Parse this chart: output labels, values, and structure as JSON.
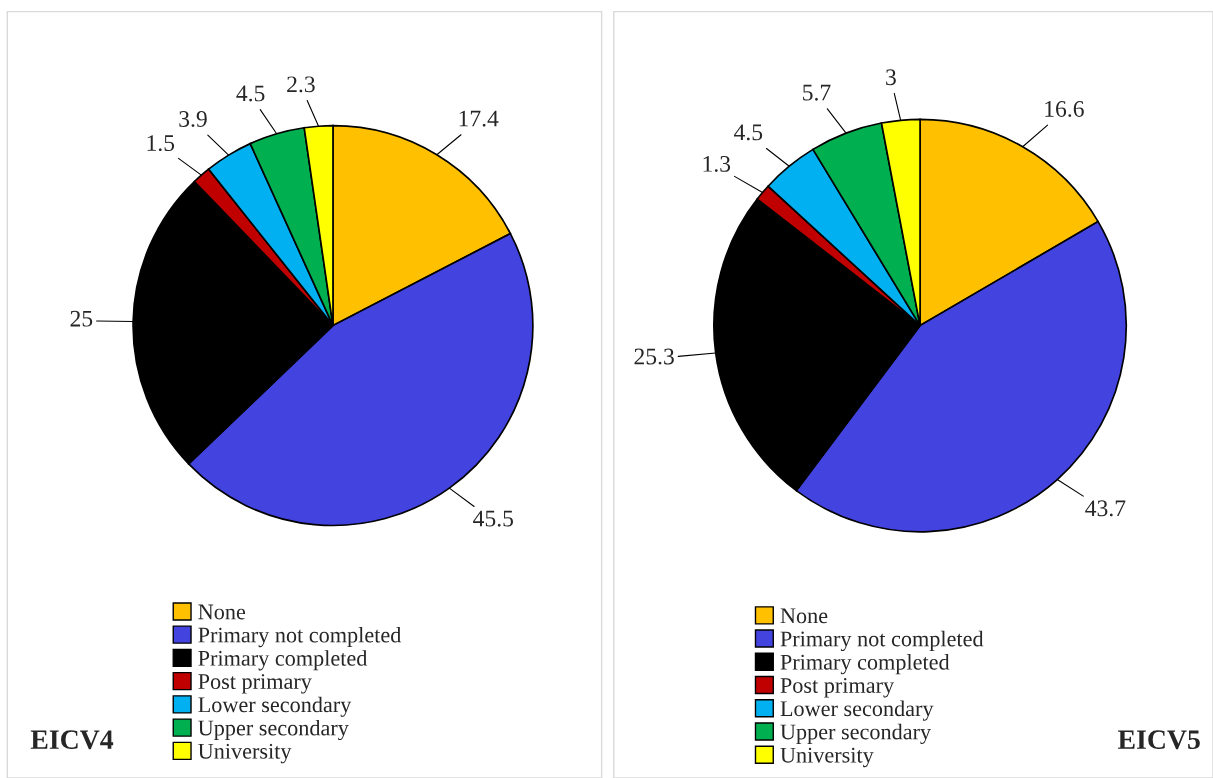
{
  "chart_data": [
    {
      "type": "pie",
      "title": "EICV4",
      "categories": [
        "None",
        "Primary not completed",
        "Primary completed",
        "Post primary",
        "Lower secondary",
        "Upper secondary",
        "University"
      ],
      "values": [
        17.4,
        45.5,
        25,
        1.5,
        3.9,
        4.5,
        2.3
      ],
      "colors": [
        "#ffc000",
        "#4343e0",
        "#000000",
        "#c00000",
        "#00b0f0",
        "#00b050",
        "#ffff00"
      ],
      "data_labels": true,
      "legend": "bottom"
    },
    {
      "type": "pie",
      "title": "EICV5",
      "categories": [
        "None",
        "Primary not completed",
        "Primary completed",
        "Post primary",
        "Lower secondary",
        "Upper secondary",
        "University"
      ],
      "values": [
        16.6,
        43.7,
        25.3,
        1.3,
        4.5,
        5.7,
        3
      ],
      "colors": [
        "#ffc000",
        "#4343e0",
        "#000000",
        "#c00000",
        "#00b0f0",
        "#00b050",
        "#ffff00"
      ],
      "data_labels": true,
      "legend": "bottom"
    }
  ]
}
